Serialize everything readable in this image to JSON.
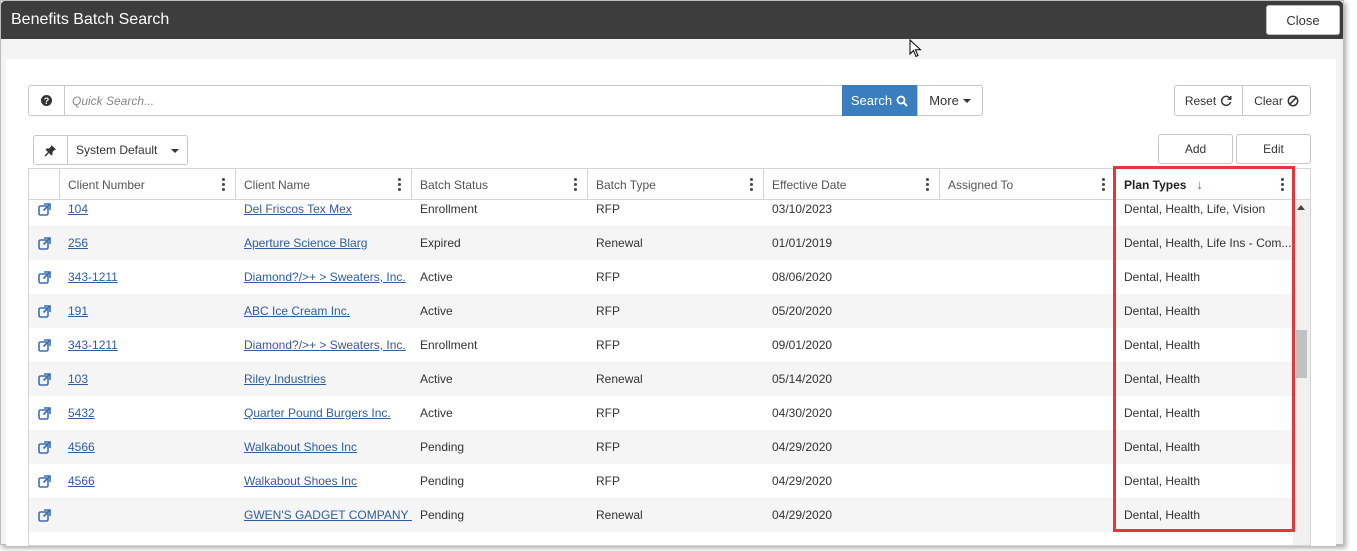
{
  "window": {
    "title": "Benefits Batch Search",
    "close_label": "Close"
  },
  "search": {
    "placeholder": "Quick Search...",
    "search_label": "Search",
    "more_label": "More",
    "help_glyph": "?"
  },
  "actions": {
    "reset_label": "Reset",
    "clear_label": "Clear",
    "add_label": "Add",
    "edit_label": "Edit"
  },
  "view": {
    "selected": "System Default"
  },
  "grid": {
    "columns": [
      "Client Number",
      "Client Name",
      "Batch Status",
      "Batch Type",
      "Effective Date",
      "Assigned To",
      "Plan Types"
    ],
    "rows": [
      {
        "client_number": "104",
        "client_name": "Del Friscos Tex Mex",
        "status": "Enrollment",
        "type": "RFP",
        "date": "03/10/2023",
        "assigned": "",
        "plan_types": "Dental, Health, Life, Vision"
      },
      {
        "client_number": "256",
        "client_name": "Aperture Science Blarg",
        "status": "Expired",
        "type": "Renewal",
        "date": "01/01/2019",
        "assigned": "",
        "plan_types": "Dental, Health, Life Ins - Com..."
      },
      {
        "client_number": "343-1211",
        "client_name": "Diamond?/>+ > Sweaters, Inc.",
        "status": "Active",
        "type": "RFP",
        "date": "08/06/2020",
        "assigned": "",
        "plan_types": "Dental, Health"
      },
      {
        "client_number": "191",
        "client_name": "ABC Ice Cream Inc.",
        "status": "Active",
        "type": "RFP",
        "date": "05/20/2020",
        "assigned": "",
        "plan_types": "Dental, Health"
      },
      {
        "client_number": "343-1211",
        "client_name": "Diamond?/>+ > Sweaters, Inc.",
        "status": "Enrollment",
        "type": "RFP",
        "date": "09/01/2020",
        "assigned": "",
        "plan_types": "Dental, Health"
      },
      {
        "client_number": "103",
        "client_name": "Riley Industries",
        "status": "Active",
        "type": "Renewal",
        "date": "05/14/2020",
        "assigned": "",
        "plan_types": "Dental, Health"
      },
      {
        "client_number": "5432",
        "client_name": "Quarter Pound Burgers Inc.",
        "status": "Active",
        "type": "RFP",
        "date": "04/30/2020",
        "assigned": "",
        "plan_types": "Dental, Health"
      },
      {
        "client_number": "4566",
        "client_name": "Walkabout Shoes Inc",
        "status": "Pending",
        "type": "RFP",
        "date": "04/29/2020",
        "assigned": "",
        "plan_types": "Dental, Health"
      },
      {
        "client_number": "4566",
        "client_name": "Walkabout Shoes Inc",
        "status": "Pending",
        "type": "RFP",
        "date": "04/29/2020",
        "assigned": "",
        "plan_types": "Dental, Health"
      },
      {
        "client_number": "",
        "client_name": "GWEN'S GADGET COMPANY ...",
        "status": "Pending",
        "type": "Renewal",
        "date": "04/29/2020",
        "assigned": "",
        "plan_types": "Dental, Health"
      }
    ]
  },
  "colors": {
    "accent": "#3a7ec0",
    "link": "#2e5e9e",
    "highlight": "#e0383d",
    "titlebar": "#3d3d3d"
  }
}
